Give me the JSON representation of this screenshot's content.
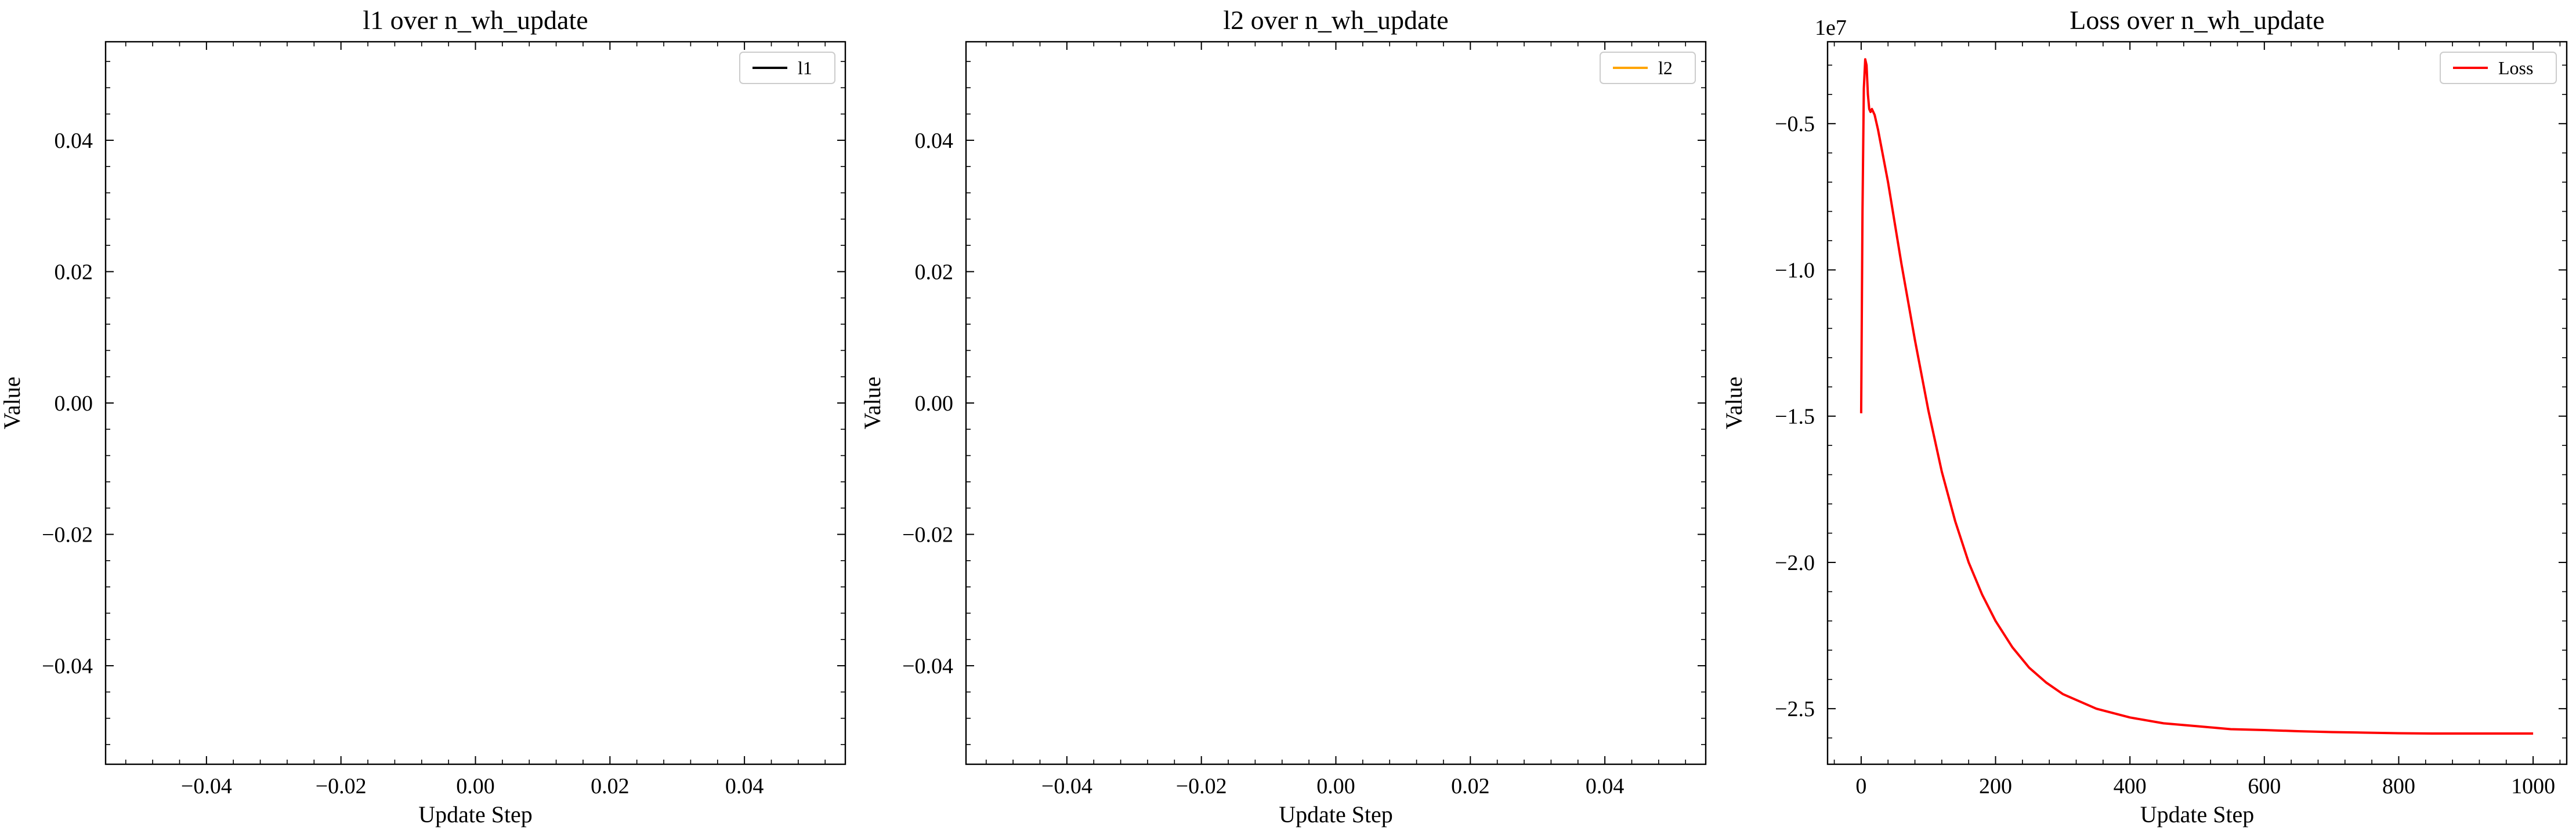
{
  "chart_data": [
    {
      "type": "line",
      "title": "l1 over n_wh_update",
      "xlabel": "Update Step",
      "ylabel": "Value",
      "xlim": [
        -0.055,
        0.055
      ],
      "ylim": [
        -0.055,
        0.055
      ],
      "xticks": [
        -0.04,
        -0.02,
        0.0,
        0.02,
        0.04
      ],
      "xtick_labels": [
        "−0.04",
        "−0.02",
        "0.00",
        "0.02",
        "0.04"
      ],
      "yticks": [
        -0.04,
        -0.02,
        0.0,
        0.02,
        0.04
      ],
      "ytick_labels": [
        "−0.04",
        "−0.02",
        "0.00",
        "0.02",
        "0.04"
      ],
      "legend_position": "top-right",
      "grid": false,
      "series": [
        {
          "name": "l1",
          "color": "#000000",
          "x": [],
          "y": []
        }
      ]
    },
    {
      "type": "line",
      "title": "l2 over n_wh_update",
      "xlabel": "Update Step",
      "ylabel": "Value",
      "xlim": [
        -0.055,
        0.055
      ],
      "ylim": [
        -0.055,
        0.055
      ],
      "xticks": [
        -0.04,
        -0.02,
        0.0,
        0.02,
        0.04
      ],
      "xtick_labels": [
        "−0.04",
        "−0.02",
        "0.00",
        "0.02",
        "0.04"
      ],
      "yticks": [
        -0.04,
        -0.02,
        0.0,
        0.02,
        0.04
      ],
      "ytick_labels": [
        "−0.04",
        "−0.02",
        "0.00",
        "0.02",
        "0.04"
      ],
      "legend_position": "top-right",
      "grid": false,
      "series": [
        {
          "name": "l2",
          "color": "#FFA500",
          "x": [],
          "y": []
        }
      ]
    },
    {
      "type": "line",
      "title": "Loss over n_wh_update",
      "xlabel": "Update Step",
      "ylabel": "Value",
      "offset_label": "1e7",
      "xlim": [
        -50,
        1050
      ],
      "ylim": [
        -2.69,
        -0.22
      ],
      "xticks": [
        0,
        200,
        400,
        600,
        800,
        1000
      ],
      "xtick_labels": [
        "0",
        "200",
        "400",
        "600",
        "800",
        "1000"
      ],
      "yticks": [
        -0.5,
        -1.0,
        -1.5,
        -2.0,
        -2.5
      ],
      "ytick_labels": [
        "−0.5",
        "−1.0",
        "−1.5",
        "−2.0",
        "−2.5"
      ],
      "legend_position": "top-right",
      "grid": false,
      "series": [
        {
          "name": "Loss",
          "color": "#FF0000",
          "x": [
            0,
            2,
            4,
            6,
            8,
            10,
            12,
            14,
            16,
            18,
            20,
            25,
            30,
            40,
            50,
            60,
            80,
            100,
            120,
            140,
            160,
            180,
            200,
            225,
            250,
            275,
            300,
            350,
            400,
            450,
            500,
            550,
            600,
            650,
            700,
            750,
            800,
            850,
            900,
            950,
            1000
          ],
          "y": [
            -1.49,
            -0.8,
            -0.38,
            -0.28,
            -0.3,
            -0.4,
            -0.45,
            -0.46,
            -0.45,
            -0.46,
            -0.47,
            -0.52,
            -0.58,
            -0.7,
            -0.84,
            -0.98,
            -1.24,
            -1.48,
            -1.69,
            -1.86,
            -2.0,
            -2.11,
            -2.2,
            -2.29,
            -2.36,
            -2.41,
            -2.45,
            -2.5,
            -2.53,
            -2.55,
            -2.56,
            -2.57,
            -2.573,
            -2.577,
            -2.58,
            -2.582,
            -2.584,
            -2.585,
            -2.585,
            -2.585,
            -2.585
          ]
        }
      ]
    }
  ]
}
